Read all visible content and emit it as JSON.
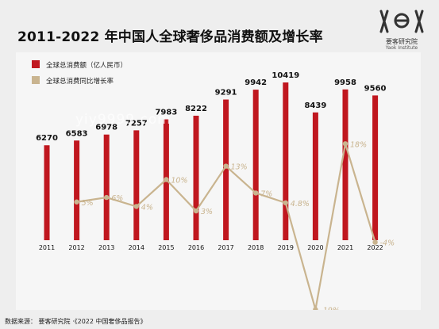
{
  "header": {
    "title": "2011-2022 年中国人全球奢侈品消费额及增长率",
    "logo_cn": "要客研究院",
    "logo_en": "Yaok Institute"
  },
  "watermark": "yiy9999.com",
  "footer": {
    "source": "数据来源： 要客研究院 ·《2022 中国奢侈品报告》"
  },
  "colors": {
    "bar": "#c0171f",
    "line": "#c9b48f",
    "panel": "#f6f6f6"
  },
  "chart_data": {
    "type": "bar",
    "categories": [
      "2011",
      "2012",
      "2013",
      "2014",
      "2015",
      "2016",
      "2017",
      "2018",
      "2019",
      "2020",
      "2021",
      "2022"
    ],
    "series": [
      {
        "name": "全球总消费额（亿人民币）",
        "type": "bar",
        "values": [
          6270,
          6583,
          6978,
          7257,
          7983,
          8222,
          9291,
          9942,
          10419,
          8439,
          9958,
          9560
        ],
        "labels": [
          "6270",
          "6583",
          "6978",
          "7257",
          "7983",
          "8222",
          "9291",
          "9942",
          "10419",
          "8439",
          "9958",
          "9560"
        ]
      },
      {
        "name": "全球总消费同比增长率",
        "type": "line",
        "values": [
          null,
          5,
          6,
          4,
          10,
          3,
          13,
          7,
          4.8,
          -19,
          18,
          -4
        ],
        "labels": [
          "",
          "5%",
          "6%",
          "4%",
          "10%",
          "3%",
          "13%",
          "7%",
          "4.8%",
          "-19%",
          "18%",
          "-4%"
        ]
      }
    ],
    "legend_position": "top-left",
    "grid": false
  }
}
